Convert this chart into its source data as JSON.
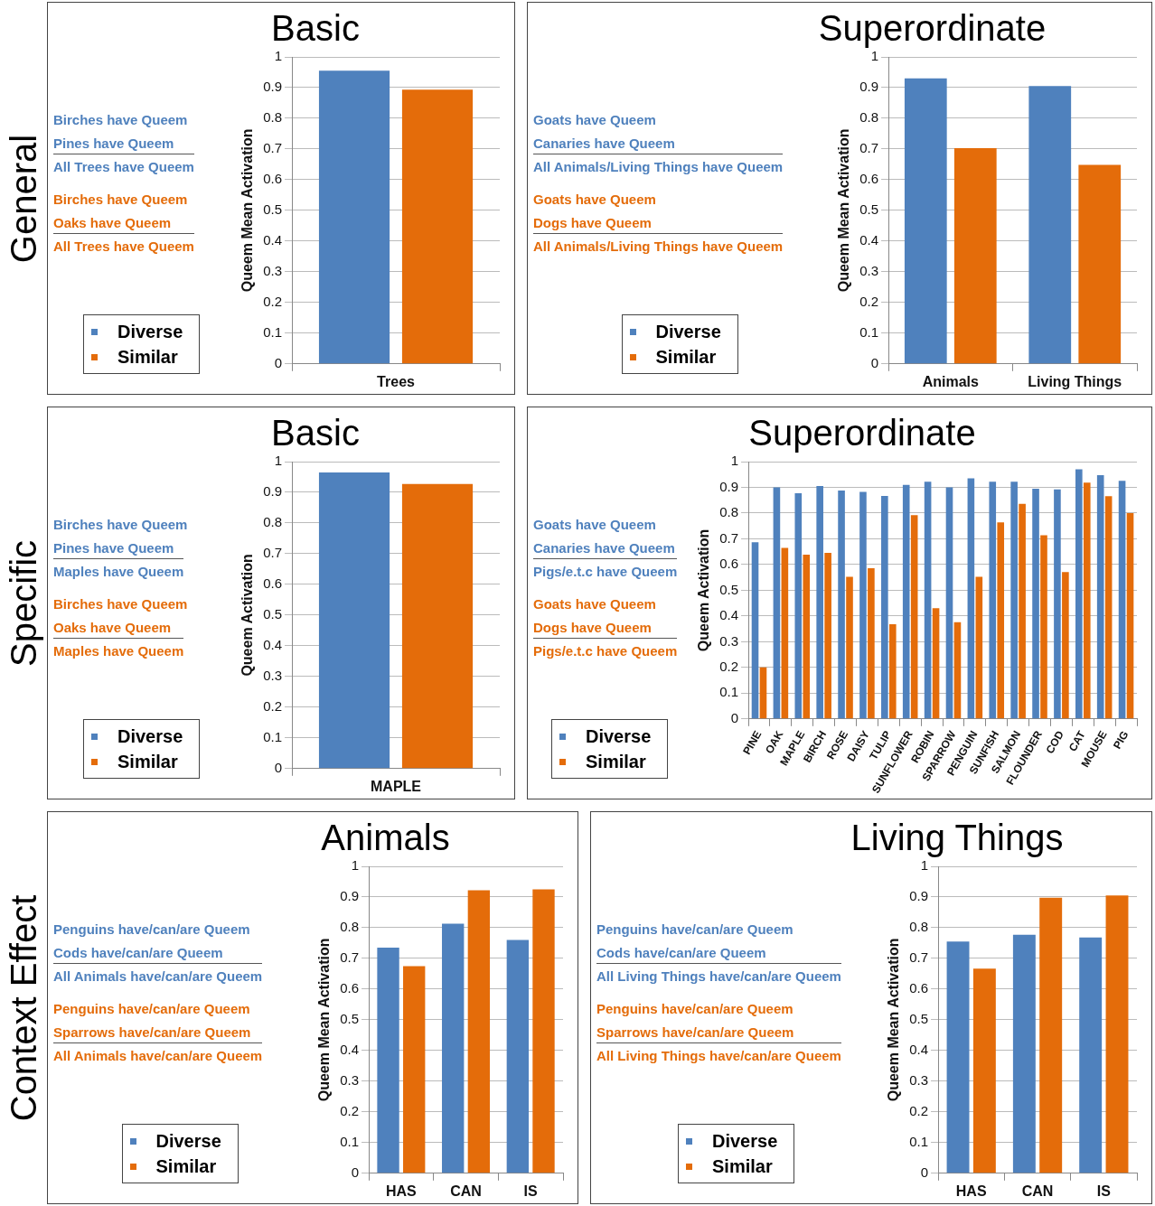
{
  "chart_data": [
    {
      "type": "bar",
      "title": "Basic",
      "ylabel": "Queem Mean Activation",
      "categories": [
        "Trees"
      ],
      "series": [
        {
          "name": "Diverse",
          "color": "#4f81bd",
          "values": [
            0.955
          ]
        },
        {
          "name": "Similar",
          "color": "#e46c0a",
          "values": [
            0.893
          ]
        }
      ],
      "ylim": [
        0,
        1
      ],
      "yticks": [
        0,
        0.1,
        0.2,
        0.3,
        0.4,
        0.5,
        0.6,
        0.7,
        0.8,
        0.9,
        1
      ],
      "grid": "y",
      "legend": "left",
      "annotations": [
        "General",
        "Birches have Queem",
        "Pines have Queem",
        "All Trees have Queem",
        "Birches have Queem",
        "Oaks have Queem",
        "All Trees have Queem"
      ]
    },
    {
      "type": "bar",
      "title": "Superordinate",
      "ylabel": "Queem Mean Activation",
      "categories": [
        "Animals",
        "Living Things"
      ],
      "series": [
        {
          "name": "Diverse",
          "color": "#4f81bd",
          "values": [
            0.93,
            0.905
          ]
        },
        {
          "name": "Similar",
          "color": "#e46c0a",
          "values": [
            0.703,
            0.648
          ]
        }
      ],
      "ylim": [
        0,
        1
      ],
      "yticks": [
        0,
        0.1,
        0.2,
        0.3,
        0.4,
        0.5,
        0.6,
        0.7,
        0.8,
        0.9,
        1
      ],
      "grid": "y",
      "legend": "left",
      "annotations": [
        "Goats have Queem",
        "Canaries have Queem",
        "All Animals/Living Things have Queem",
        "Goats have Queem",
        "Dogs have Queem",
        "All Animals/Living Things have Queem"
      ]
    },
    {
      "type": "bar",
      "title": "Basic",
      "ylabel": "Queem Activation",
      "categories": [
        "MAPLE"
      ],
      "series": [
        {
          "name": "Diverse",
          "color": "#4f81bd",
          "values": [
            0.965
          ]
        },
        {
          "name": "Similar",
          "color": "#e46c0a",
          "values": [
            0.927
          ]
        }
      ],
      "ylim": [
        0,
        1
      ],
      "yticks": [
        0,
        0.1,
        0.2,
        0.3,
        0.4,
        0.5,
        0.6,
        0.7,
        0.8,
        0.9,
        1
      ],
      "grid": "y",
      "legend": "left",
      "annotations": [
        "Specific",
        "Birches have Queem",
        "Pines have Queem",
        "Maples have Queem",
        "Birches have Queem",
        "Oaks have Queem",
        "Maples have Queem"
      ]
    },
    {
      "type": "bar",
      "title": "Superordinate",
      "ylabel": "Queem Activation",
      "categories": [
        "PINE",
        "OAK",
        "MAPLE",
        "BIRCH",
        "ROSE",
        "DAISY",
        "TULIP",
        "SUNFLOWER",
        "ROBIN",
        "SPARROW",
        "PENGUIN",
        "SUNFISH",
        "SALMON",
        "FLOUNDER",
        "COD",
        "CAT",
        "MOUSE",
        "PIG"
      ],
      "series": [
        {
          "name": "Diverse",
          "color": "#4f81bd",
          "values": [
            0.687,
            0.9,
            0.877,
            0.905,
            0.888,
            0.882,
            0.867,
            0.91,
            0.922,
            0.9,
            0.935,
            0.922,
            0.922,
            0.895,
            0.892,
            0.97,
            0.947,
            0.925
          ]
        },
        {
          "name": "Similar",
          "color": "#e46c0a",
          "values": [
            0.2,
            0.665,
            0.638,
            0.645,
            0.552,
            0.586,
            0.368,
            0.792,
            0.43,
            0.376,
            0.552,
            0.764,
            0.836,
            0.714,
            0.571,
            0.918,
            0.866,
            0.8
          ]
        }
      ],
      "ylim": [
        0,
        1
      ],
      "yticks": [
        0,
        0.1,
        0.2,
        0.3,
        0.4,
        0.5,
        0.6,
        0.7,
        0.8,
        0.9,
        1
      ],
      "grid": "y",
      "legend": "left",
      "annotations": [
        "Goats have Queem",
        "Canaries have Queem",
        "Pigs/e.t.c have Queem",
        "Goats have Queem",
        "Dogs have Queem",
        "Pigs/e.t.c have Queem"
      ]
    },
    {
      "type": "bar",
      "title": "Animals",
      "ylabel": "Queem Mean Activation",
      "categories": [
        "HAS",
        "CAN",
        "IS"
      ],
      "series": [
        {
          "name": "Diverse",
          "color": "#4f81bd",
          "values": [
            0.735,
            0.813,
            0.76
          ]
        },
        {
          "name": "Similar",
          "color": "#e46c0a",
          "values": [
            0.675,
            0.922,
            0.925
          ]
        }
      ],
      "ylim": [
        0,
        1
      ],
      "yticks": [
        0,
        0.1,
        0.2,
        0.3,
        0.4,
        0.5,
        0.6,
        0.7,
        0.8,
        0.9,
        1
      ],
      "grid": "y",
      "legend": "left",
      "annotations": [
        "Context Effect",
        "Penguins have/can/are Queem",
        "Cods have/can/are Queem",
        "All Animals have/can/are Queem",
        "Penguins have/can/are Queem",
        "Sparrows have/can/are Queem",
        "All Animals have/can/are Queem"
      ]
    },
    {
      "type": "bar",
      "title": "Living Things",
      "ylabel": "Queem Mean Activation",
      "categories": [
        "HAS",
        "CAN",
        "IS"
      ],
      "series": [
        {
          "name": "Diverse",
          "color": "#4f81bd",
          "values": [
            0.755,
            0.777,
            0.768
          ]
        },
        {
          "name": "Similar",
          "color": "#e46c0a",
          "values": [
            0.667,
            0.898,
            0.905
          ]
        }
      ],
      "ylim": [
        0,
        1
      ],
      "yticks": [
        0,
        0.1,
        0.2,
        0.3,
        0.4,
        0.5,
        0.6,
        0.7,
        0.8,
        0.9,
        1
      ],
      "grid": "y",
      "legend": "left",
      "annotations": [
        "Penguins have/can/are Queem",
        "Cods have/can/are Queem",
        "All Living Things have/can/are Queem",
        "Penguins have/can/are Queem",
        "Sparrows have/can/are Queem",
        "All Living Things have/can/are Queem"
      ]
    }
  ]
}
